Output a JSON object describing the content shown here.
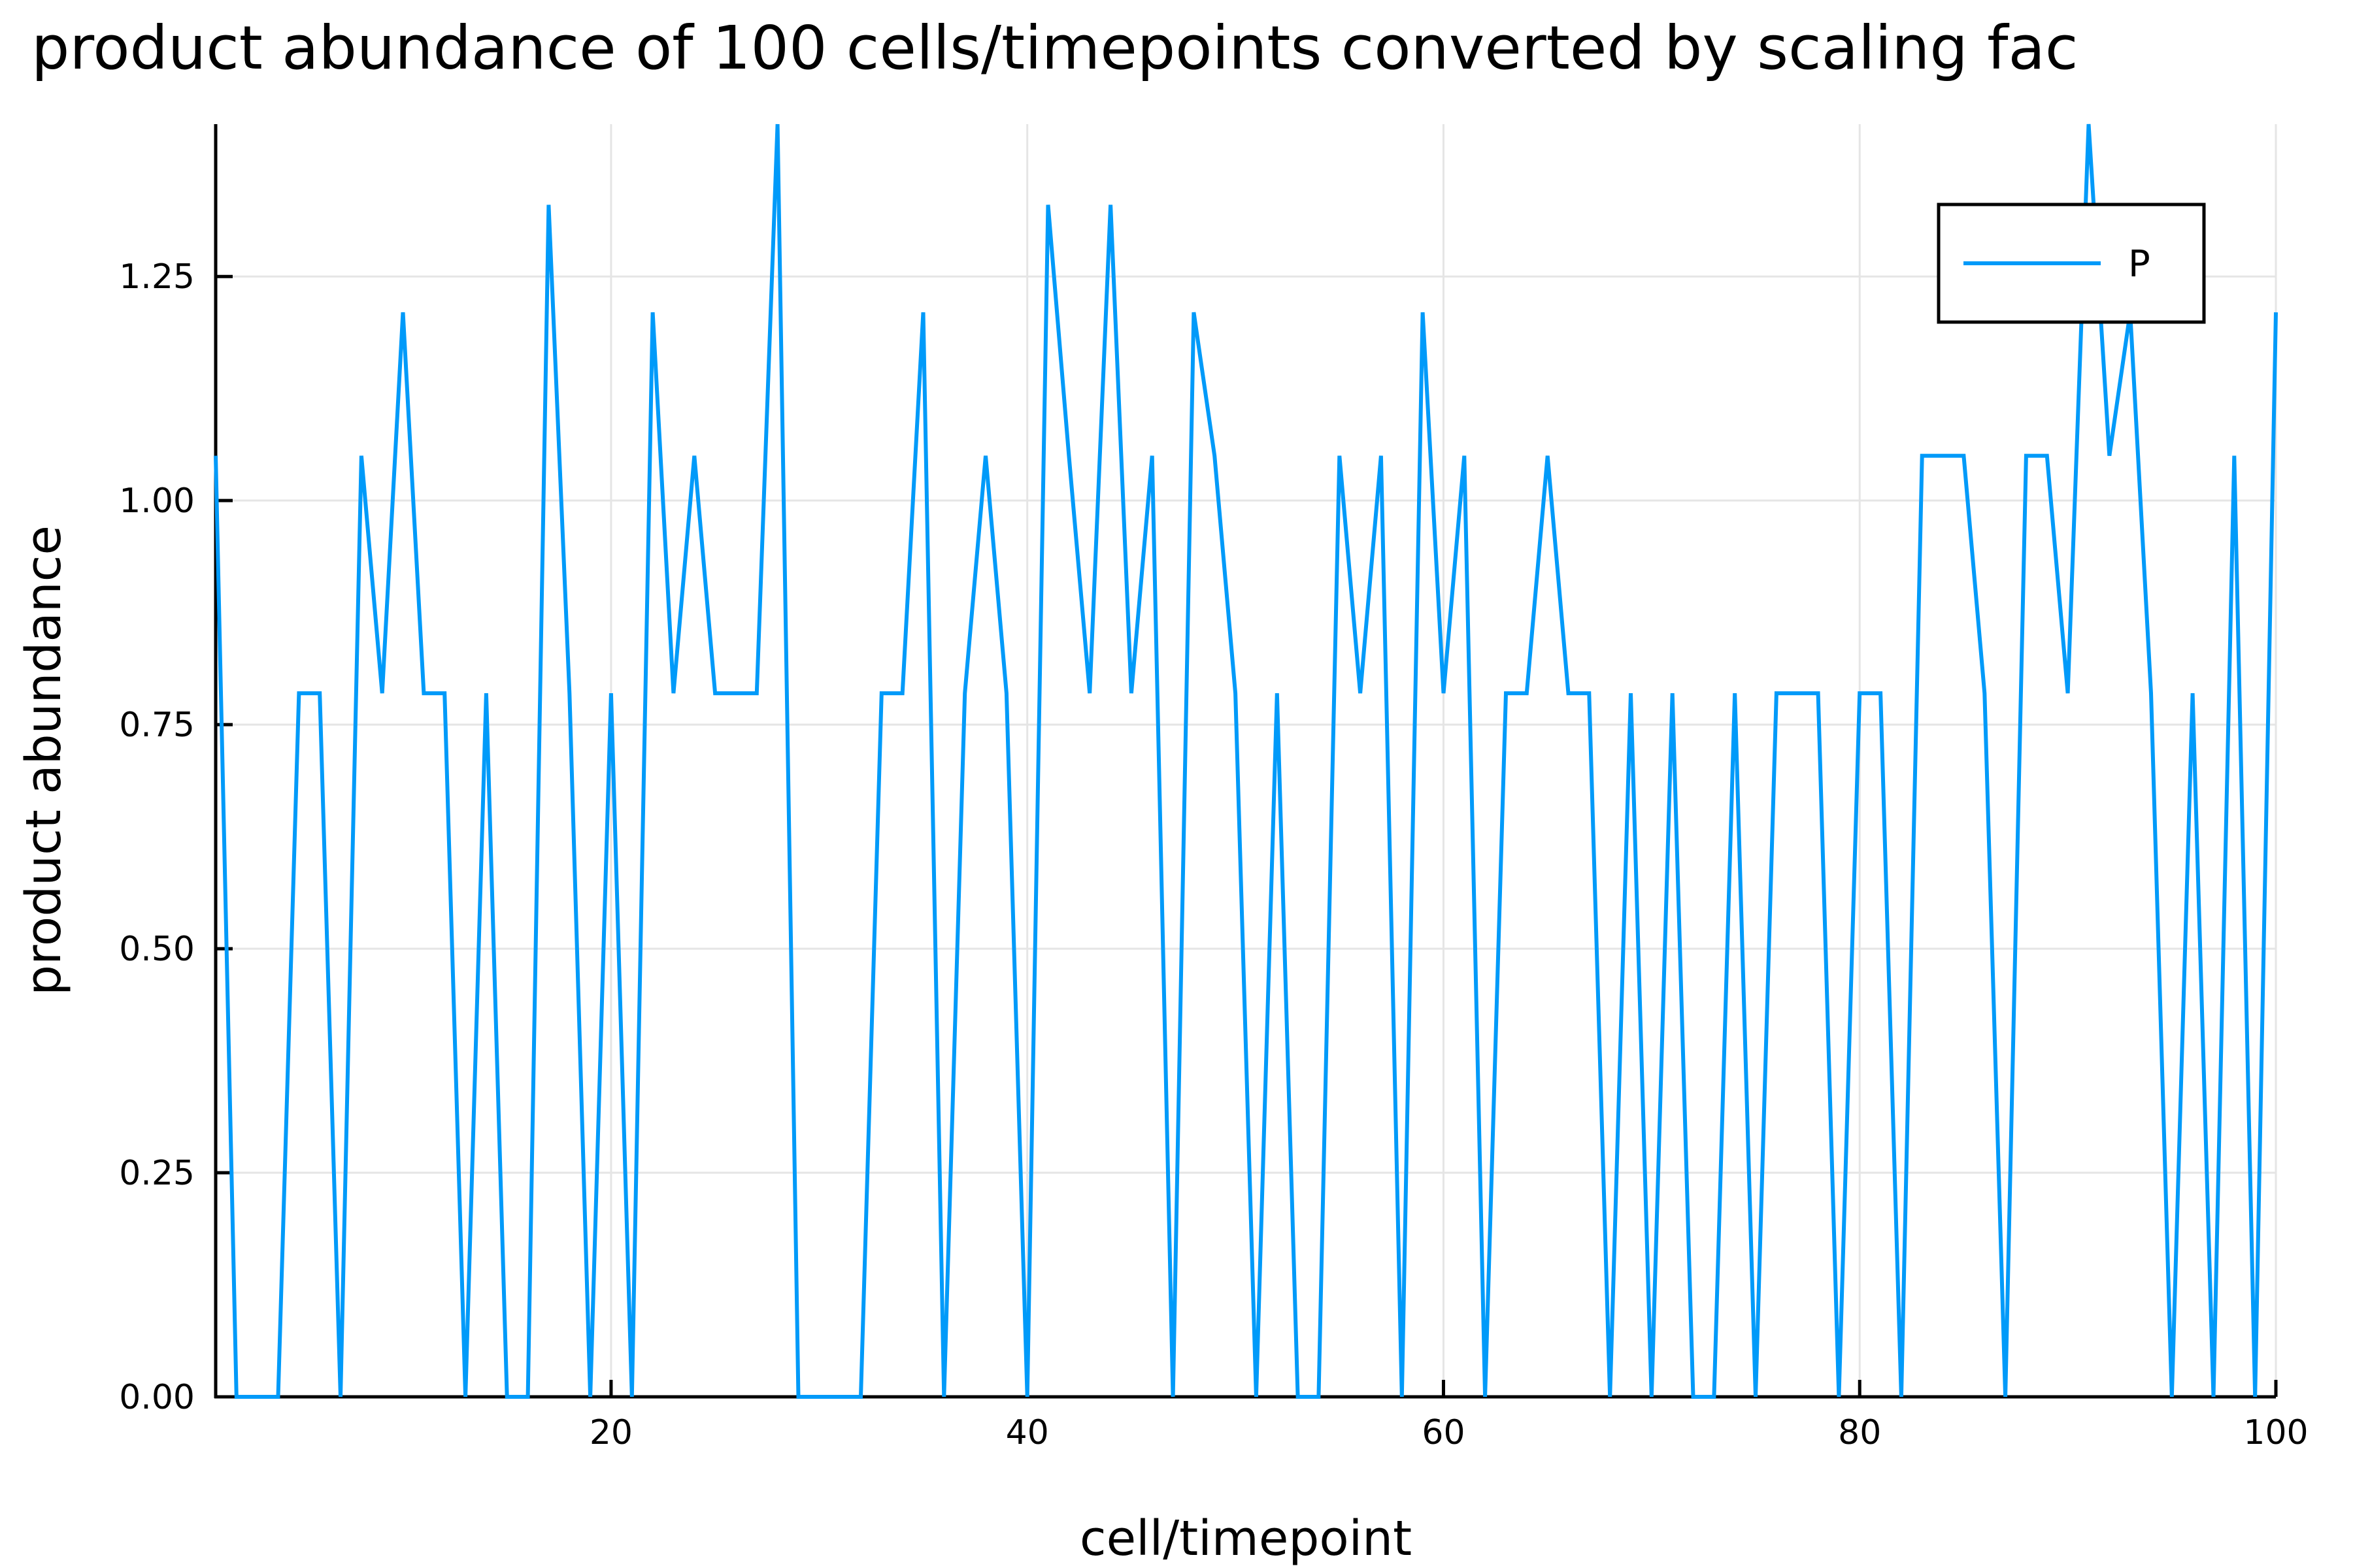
{
  "chart_data": {
    "type": "line",
    "title": "product abundance of 100 cells/timepoints converted by scaling fac",
    "xlabel": "cell/timepoint",
    "ylabel": "product abundance",
    "xlim": [
      1,
      100
    ],
    "ylim": [
      0,
      1.42
    ],
    "xticks": [
      20,
      40,
      60,
      80,
      100
    ],
    "xtick_labels": [
      "20",
      "40",
      "60",
      "80",
      "100"
    ],
    "yticks": [
      0,
      0.25,
      0.5,
      0.75,
      1.0,
      1.25
    ],
    "ytick_labels": [
      "0.00",
      "0.25",
      "0.50",
      "0.75",
      "1.00",
      "1.25"
    ],
    "grid": true,
    "legend_position": "top-right",
    "series": [
      {
        "name": "P",
        "color": "#009af9",
        "x": [
          1,
          2,
          3,
          4,
          5,
          6,
          7,
          8,
          9,
          10,
          11,
          12,
          13,
          14,
          15,
          16,
          17,
          18,
          19,
          20,
          21,
          22,
          23,
          24,
          25,
          26,
          27,
          28,
          29,
          30,
          31,
          32,
          33,
          34,
          35,
          36,
          37,
          38,
          39,
          40,
          41,
          42,
          43,
          44,
          45,
          46,
          47,
          48,
          49,
          50,
          51,
          52,
          53,
          54,
          55,
          56,
          57,
          58,
          59,
          60,
          61,
          62,
          63,
          64,
          65,
          66,
          67,
          68,
          69,
          70,
          71,
          72,
          73,
          74,
          75,
          76,
          77,
          78,
          79,
          80,
          81,
          82,
          83,
          84,
          85,
          86,
          87,
          88,
          89,
          90,
          91,
          92,
          93,
          94,
          95,
          96,
          97,
          98,
          99,
          100
        ],
        "values": [
          1.05,
          0,
          0,
          0,
          0.785,
          0.785,
          0,
          1.05,
          0.785,
          1.21,
          0.785,
          0.785,
          0,
          0.785,
          0,
          0,
          1.33,
          0.785,
          0,
          0.785,
          0,
          1.21,
          0.785,
          1.05,
          0.785,
          0.785,
          0.785,
          1.42,
          0,
          0,
          0,
          0,
          0.785,
          0.785,
          1.21,
          0,
          0.785,
          1.05,
          0.785,
          0,
          1.33,
          1.05,
          0.785,
          1.33,
          0.785,
          1.05,
          0,
          1.21,
          1.05,
          0.785,
          0,
          0.785,
          0,
          0,
          1.05,
          0.785,
          1.05,
          0,
          1.21,
          0.785,
          1.05,
          0,
          0.785,
          0.785,
          1.05,
          0.785,
          0.785,
          0,
          0.785,
          0,
          0.785,
          0,
          0,
          0.785,
          0,
          0.785,
          0.785,
          0.785,
          0,
          0.785,
          0.785,
          0,
          1.05,
          1.05,
          1.05,
          0.785,
          0,
          1.05,
          1.05,
          0.785,
          1.42,
          1.05,
          1.21,
          0.785,
          0,
          0.785,
          0,
          1.05,
          0,
          1.21
        ]
      }
    ]
  }
}
